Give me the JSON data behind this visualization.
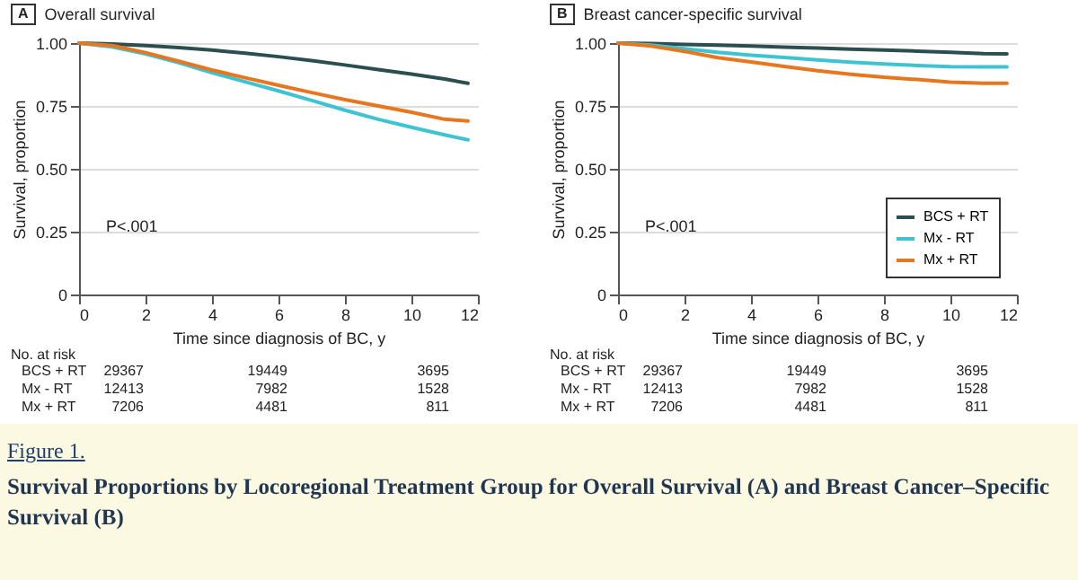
{
  "chart_data": [
    {
      "type": "line",
      "title": "Overall survival",
      "xlabel": "Time since diagnosis of BC, y",
      "ylabel": "Survival, proportion",
      "x": [
        0,
        1,
        2,
        3,
        4,
        5,
        6,
        7,
        8,
        9,
        10,
        11,
        11.7
      ],
      "series": [
        {
          "color": "#2b4f50",
          "values": [
            1,
            0.996,
            0.99,
            0.982,
            0.972,
            0.96,
            0.946,
            0.93,
            0.913,
            0.895,
            0.877,
            0.857,
            0.84
          ]
        },
        {
          "color": "#3ec3d3",
          "values": [
            1,
            0.985,
            0.957,
            0.922,
            0.882,
            0.846,
            0.81,
            0.772,
            0.733,
            0.697,
            0.665,
            0.635,
            0.615
          ]
        },
        {
          "color": "#e8761f",
          "values": [
            1,
            0.99,
            0.962,
            0.928,
            0.893,
            0.862,
            0.832,
            0.803,
            0.775,
            0.75,
            0.725,
            0.697,
            0.69
          ]
        }
      ],
      "xlim": [
        0,
        12
      ],
      "xticks": [
        0,
        2,
        4,
        6,
        8,
        10,
        12
      ],
      "ylim": [
        0,
        1
      ],
      "yticks": [
        {
          "value": 0,
          "label": "0"
        },
        {
          "value": 0.25,
          "label": "0.25"
        },
        {
          "value": 0.5,
          "label": "0.50"
        },
        {
          "value": 0.75,
          "label": "0.75"
        },
        {
          "value": 1,
          "label": "1.00"
        }
      ],
      "grid": "y",
      "legend": false,
      "annotations": [
        "A",
        "P<.001",
        "No. at risk",
        "BCS + RT",
        "29367",
        "19449",
        "3695",
        "Mx - RT",
        "12413",
        "7982",
        "1528",
        "Mx + RT",
        "7206",
        "4481",
        "811",
        "Figure 1.",
        "Survival Proportions by Locoregional Treatment Group for Overall Survival (A) and Breast Cancer–Specific Survival (B)"
      ]
    },
    {
      "type": "line",
      "title": "Breast cancer-specific survival",
      "xlabel": "Time since diagnosis of BC, y",
      "ylabel": "Survival, proportion",
      "x": [
        0,
        1,
        2,
        3,
        4,
        5,
        6,
        7,
        8,
        9,
        10,
        11,
        11.7
      ],
      "series": [
        {
          "name": "BCS + RT",
          "color": "#2b4f50",
          "values": [
            1,
            0.998,
            0.995,
            0.992,
            0.988,
            0.984,
            0.98,
            0.976,
            0.972,
            0.968,
            0.963,
            0.958,
            0.957
          ]
        },
        {
          "name": "Mx - RT",
          "color": "#3ec3d3",
          "values": [
            1,
            0.992,
            0.978,
            0.963,
            0.952,
            0.943,
            0.933,
            0.924,
            0.917,
            0.911,
            0.906,
            0.905,
            0.905
          ]
        },
        {
          "name": "Mx + RT",
          "color": "#e8761f",
          "values": [
            1,
            0.988,
            0.967,
            0.942,
            0.925,
            0.907,
            0.89,
            0.876,
            0.864,
            0.855,
            0.845,
            0.84,
            0.84
          ]
        }
      ],
      "xlim": [
        0,
        12
      ],
      "xticks": [
        0,
        2,
        4,
        6,
        8,
        10,
        12
      ],
      "ylim": [
        0,
        1
      ],
      "yticks": [
        {
          "value": 0,
          "label": "0"
        },
        {
          "value": 0.25,
          "label": "0.25"
        },
        {
          "value": 0.5,
          "label": "0.50"
        },
        {
          "value": 0.75,
          "label": "0.75"
        },
        {
          "value": 1,
          "label": "1.00"
        }
      ],
      "grid": "y",
      "legend": "bottom right",
      "annotations": [
        "B",
        "P<.001",
        "No. at risk",
        "BCS + RT",
        "29367",
        "19449",
        "3695",
        "Mx - RT",
        "12413",
        "7982",
        "1528",
        "Mx + RT",
        "7206",
        "4481",
        "811"
      ]
    }
  ]
}
